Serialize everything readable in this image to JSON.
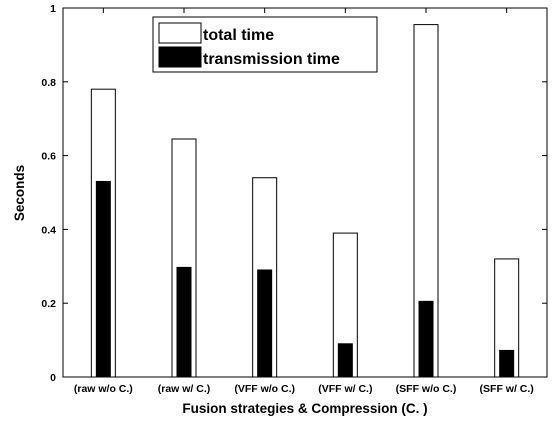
{
  "chart_data": {
    "type": "bar",
    "categories": [
      "(raw w/o C.)",
      "(raw w/ C.)",
      "(VFF w/o C.)",
      "(VFF w/ C.)",
      "(SFF w/o C.)",
      "(SFF w/ C.)"
    ],
    "series": [
      {
        "name": "total time",
        "values": [
          0.78,
          0.645,
          0.54,
          0.39,
          0.955,
          0.32
        ],
        "style": "outline"
      },
      {
        "name": "transmission time",
        "values": [
          0.53,
          0.297,
          0.29,
          0.09,
          0.205,
          0.072
        ],
        "style": "filled"
      }
    ],
    "title": "",
    "xlabel": "Fusion strategies & Compression (C. )",
    "ylabel": "Seconds",
    "ylim": [
      0,
      1
    ],
    "yticks": [
      0,
      0.2,
      0.4,
      0.6,
      0.8,
      1
    ],
    "grid": false,
    "legend_position": "top-center",
    "colors": {
      "total": "#ffffff",
      "transmission": "#000000",
      "axis": "#000000"
    }
  }
}
